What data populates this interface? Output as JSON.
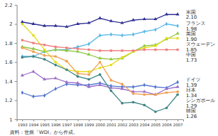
{
  "chart_data": {
    "type": "line",
    "source": "資料：世銀「WDI」から作成。",
    "categories": [
      "1993",
      "1994",
      "1995",
      "1996",
      "1997",
      "1998",
      "1999",
      "2000",
      "2001",
      "2002",
      "2003",
      "2004",
      "2005",
      "2006",
      "2007"
    ],
    "ylim": [
      1,
      2.2
    ],
    "yticks": [
      1,
      1.2,
      1.4,
      1.6,
      1.8,
      2,
      2.2
    ],
    "grid": false,
    "data_labels": true,
    "series": [
      {
        "name": "米国",
        "color": "#2e2f94",
        "marker": "triangle",
        "values": [
          2.02,
          2.0,
          1.98,
          1.98,
          1.97,
          2.0,
          2.01,
          2.06,
          2.03,
          2.01,
          2.04,
          2.05,
          2.05,
          2.1,
          2.1
        ],
        "value_labels": [
          null,
          null,
          null,
          null,
          null,
          null,
          null,
          null,
          null,
          null,
          null,
          null,
          null,
          null,
          "2.10"
        ]
      },
      {
        "name": "フランス",
        "color": "#5ab8e8",
        "marker": "diamond",
        "values": [
          1.66,
          1.66,
          1.71,
          1.73,
          1.73,
          1.76,
          1.79,
          1.88,
          1.89,
          1.88,
          1.89,
          1.92,
          1.94,
          2.0,
          1.98
        ],
        "value_labels": [
          null,
          null,
          null,
          null,
          null,
          null,
          null,
          null,
          null,
          null,
          null,
          null,
          null,
          null,
          "1.98"
        ]
      },
      {
        "name": "英国",
        "color": "#8cc63f",
        "marker": "triangle",
        "values": [
          1.76,
          1.74,
          1.71,
          1.73,
          1.72,
          1.71,
          1.68,
          1.64,
          1.63,
          1.64,
          1.71,
          1.77,
          1.78,
          1.84,
          1.9
        ],
        "value_labels": [
          null,
          null,
          null,
          null,
          null,
          null,
          null,
          null,
          null,
          null,
          null,
          null,
          null,
          null,
          "1.90"
        ]
      },
      {
        "name": "スウェーデン",
        "color": "#e6dc1e",
        "marker": "square",
        "values": [
          2.0,
          1.88,
          1.73,
          1.6,
          1.52,
          1.5,
          1.5,
          1.54,
          1.57,
          1.65,
          1.71,
          1.75,
          1.77,
          1.85,
          1.85
        ],
        "value_labels": [
          null,
          null,
          null,
          null,
          null,
          null,
          null,
          null,
          null,
          null,
          null,
          null,
          null,
          null,
          "1.85"
        ]
      },
      {
        "name": "中国",
        "color": "#ee8080",
        "marker": "square",
        "values": [
          1.83,
          1.8,
          1.78,
          1.76,
          1.75,
          1.74,
          1.73,
          1.72,
          1.72,
          1.72,
          1.72,
          1.73,
          1.73,
          1.73,
          1.73
        ],
        "value_labels": [
          null,
          null,
          null,
          null,
          null,
          null,
          null,
          null,
          null,
          null,
          null,
          null,
          null,
          null,
          "1.73"
        ]
      },
      {
        "name": "ドイツ",
        "color": "#5577d0",
        "marker": "diamond",
        "values": [
          1.28,
          1.24,
          1.25,
          1.32,
          1.37,
          1.36,
          1.36,
          1.38,
          1.35,
          1.34,
          1.34,
          1.36,
          1.34,
          1.33,
          1.39
        ],
        "value_labels": [
          null,
          null,
          null,
          null,
          null,
          null,
          null,
          null,
          null,
          null,
          null,
          null,
          null,
          null,
          "1.39"
        ]
      },
      {
        "name": "日本",
        "color": "#9a6fc8",
        "marker": "triangle",
        "values": [
          1.46,
          1.5,
          1.42,
          1.43,
          1.39,
          1.38,
          1.34,
          1.36,
          1.33,
          1.32,
          1.29,
          1.29,
          1.26,
          1.32,
          1.34
        ],
        "value_labels": [
          null,
          null,
          null,
          null,
          null,
          null,
          null,
          null,
          null,
          null,
          null,
          null,
          null,
          null,
          "1.34"
        ]
      },
      {
        "name": "シンガポール",
        "color": "#f0a050",
        "marker": "circle",
        "values": [
          1.75,
          1.71,
          1.67,
          1.66,
          1.61,
          1.48,
          1.47,
          1.6,
          1.41,
          1.37,
          1.27,
          1.26,
          1.26,
          1.28,
          1.29
        ],
        "value_labels": [
          null,
          null,
          null,
          null,
          null,
          null,
          null,
          null,
          null,
          null,
          null,
          null,
          null,
          null,
          "1.29"
        ]
      },
      {
        "name": "韓国",
        "color": "#3f8585",
        "marker": "circle",
        "values": [
          1.65,
          1.66,
          1.63,
          1.57,
          1.52,
          1.45,
          1.42,
          1.47,
          1.3,
          1.17,
          1.18,
          1.15,
          1.08,
          1.12,
          1.26
        ],
        "value_labels": [
          null,
          null,
          null,
          null,
          null,
          null,
          null,
          null,
          null,
          null,
          null,
          null,
          null,
          null,
          "1.26"
        ]
      }
    ]
  }
}
